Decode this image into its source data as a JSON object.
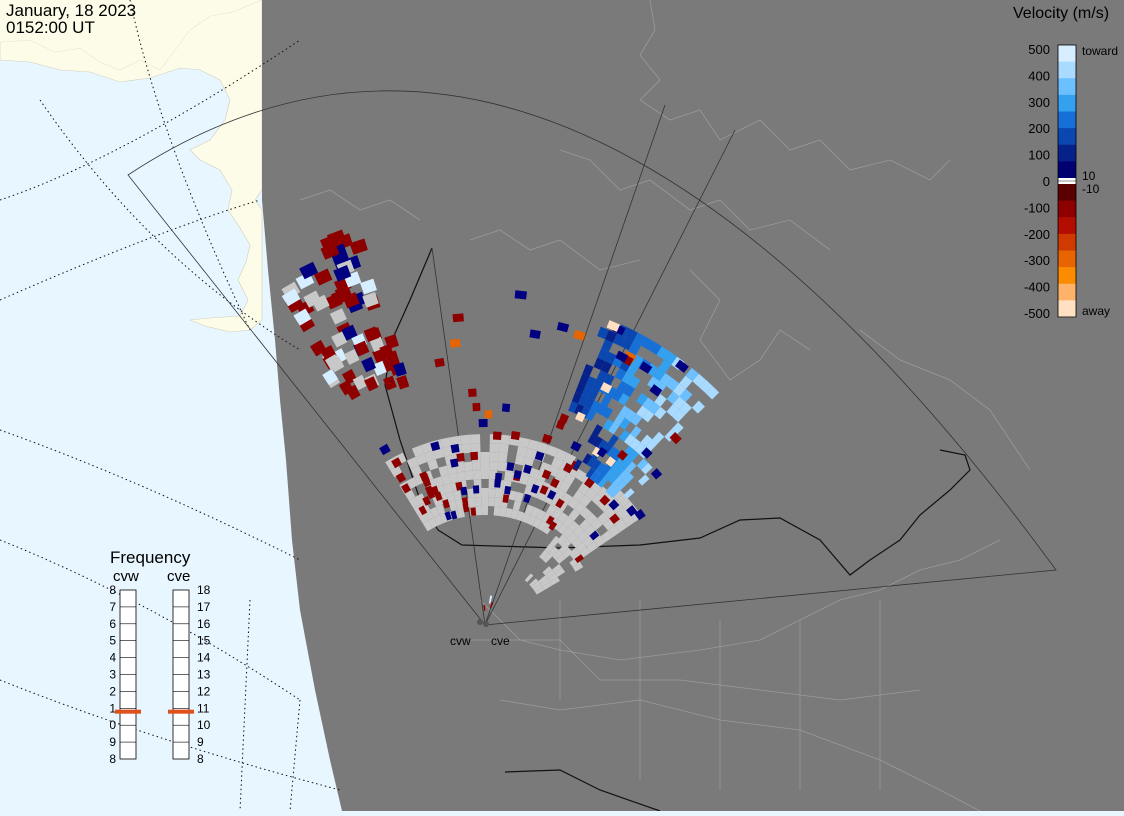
{
  "header": {
    "date": "January, 18 2023",
    "time": "0152:00 UT"
  },
  "velocity_scale": {
    "title": "Velocity (m/s)",
    "ticks": [
      "500",
      "400",
      "300",
      "200",
      "100",
      "0",
      "-100",
      "-200",
      "-300",
      "-400",
      "-500"
    ],
    "label_toward": "toward",
    "label_away": "away",
    "label_pos": "10",
    "label_neg": "-10",
    "colors": {
      "toward": [
        "#d6eeff",
        "#a8dbff",
        "#6cc0ff",
        "#34a0f0",
        "#1670d8",
        "#0b47b0",
        "#06228a",
        "#000070"
      ],
      "away": [
        "#5a0000",
        "#8e0000",
        "#b30d00",
        "#cf3a00",
        "#e86400",
        "#fb8c00",
        "#ffb26a",
        "#ffe0c2"
      ],
      "ground_scatter": "#c8c8c8"
    }
  },
  "frequency": {
    "title": "Frequency",
    "radars": [
      "cvw",
      "cve"
    ],
    "values_mhz": [
      10.8,
      10.8
    ],
    "scale": [
      "18",
      "17",
      "16",
      "15",
      "14",
      "13",
      "12",
      "11",
      "10",
      "9",
      "8"
    ],
    "marker_color": "#e0501a"
  },
  "sites": [
    {
      "name": "cvw"
    },
    {
      "name": "cve"
    }
  ],
  "map": {
    "land_dark": "#7a7a7a",
    "land_light": "#fdfce8",
    "ocean": "#e8f6ff",
    "boundaries": "#9a9a9a"
  }
}
